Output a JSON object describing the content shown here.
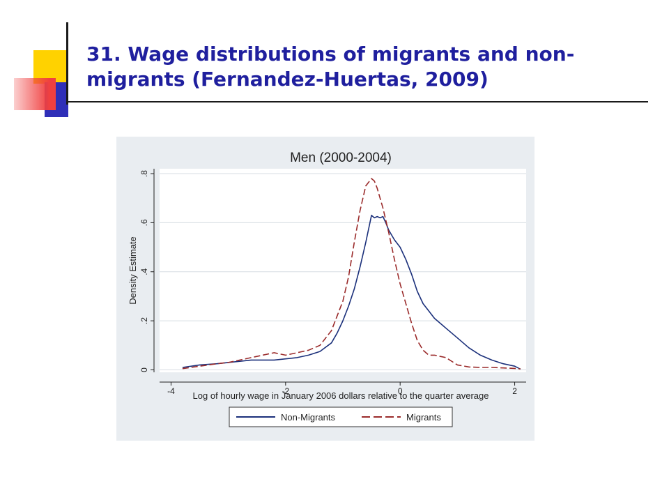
{
  "slide": {
    "title": "31. Wage distributions of migrants and non-migrants (Fernandez-Huertas, 2009)"
  },
  "colors": {
    "title": "#1f1f9e",
    "panel_background": "#e9edf1",
    "plot_background": "#ffffff",
    "non_migrants": "#1a2f7a",
    "migrants": "#9a2a2a",
    "deco_yellow": "#ffd200",
    "deco_blue": "#2f2fb8",
    "deco_red": "#f04040"
  },
  "chart_data": {
    "type": "line",
    "title": "Men (2000-2004)",
    "xlabel": "Log of hourly wage in January 2006 dollars relative to the quarter average",
    "ylabel": "Density Estimate",
    "xlim": [
      -4.2,
      2.2
    ],
    "ylim": [
      -0.01,
      0.82
    ],
    "xticks": [
      -4,
      -2,
      0,
      2
    ],
    "xtick_labels": [
      "-4",
      "-2",
      "0",
      "2"
    ],
    "yticks": [
      0,
      0.2,
      0.4,
      0.6,
      0.8
    ],
    "ytick_labels": [
      "0",
      ".2",
      ".4",
      ".6",
      ".8"
    ],
    "grid": "horizontal",
    "legend_position": "bottom",
    "series": [
      {
        "name": "Non-Migrants",
        "style": "solid",
        "color": "#1a2f7a",
        "x": [
          -3.8,
          -3.5,
          -3.2,
          -3.0,
          -2.8,
          -2.6,
          -2.4,
          -2.2,
          -2.0,
          -1.8,
          -1.6,
          -1.4,
          -1.2,
          -1.1,
          -1.0,
          -0.9,
          -0.8,
          -0.7,
          -0.6,
          -0.5,
          -0.45,
          -0.4,
          -0.35,
          -0.3,
          -0.25,
          -0.2,
          -0.1,
          0.0,
          0.1,
          0.2,
          0.3,
          0.4,
          0.5,
          0.6,
          0.8,
          1.0,
          1.2,
          1.4,
          1.6,
          1.8,
          2.0,
          2.1
        ],
        "y": [
          0.01,
          0.02,
          0.025,
          0.03,
          0.035,
          0.04,
          0.04,
          0.04,
          0.045,
          0.05,
          0.06,
          0.075,
          0.11,
          0.15,
          0.2,
          0.26,
          0.33,
          0.42,
          0.52,
          0.63,
          0.62,
          0.625,
          0.62,
          0.625,
          0.6,
          0.57,
          0.53,
          0.5,
          0.45,
          0.39,
          0.32,
          0.27,
          0.24,
          0.21,
          0.17,
          0.13,
          0.09,
          0.06,
          0.04,
          0.025,
          0.015,
          0.003
        ]
      },
      {
        "name": "Migrants",
        "style": "dashed",
        "color": "#9a2a2a",
        "x": [
          -3.8,
          -3.5,
          -3.2,
          -3.0,
          -2.8,
          -2.6,
          -2.4,
          -2.2,
          -2.0,
          -1.8,
          -1.6,
          -1.4,
          -1.2,
          -1.0,
          -0.9,
          -0.8,
          -0.7,
          -0.6,
          -0.5,
          -0.45,
          -0.4,
          -0.3,
          -0.2,
          -0.1,
          0.0,
          0.1,
          0.2,
          0.3,
          0.4,
          0.5,
          0.6,
          0.8,
          1.0,
          1.2,
          1.4,
          1.6,
          1.8,
          2.0,
          2.1
        ],
        "y": [
          0.005,
          0.015,
          0.025,
          0.03,
          0.04,
          0.05,
          0.06,
          0.07,
          0.06,
          0.07,
          0.08,
          0.1,
          0.16,
          0.28,
          0.38,
          0.52,
          0.65,
          0.75,
          0.78,
          0.77,
          0.74,
          0.66,
          0.56,
          0.45,
          0.35,
          0.27,
          0.19,
          0.12,
          0.08,
          0.06,
          0.06,
          0.05,
          0.02,
          0.012,
          0.01,
          0.01,
          0.008,
          0.006,
          0.004
        ]
      }
    ]
  }
}
